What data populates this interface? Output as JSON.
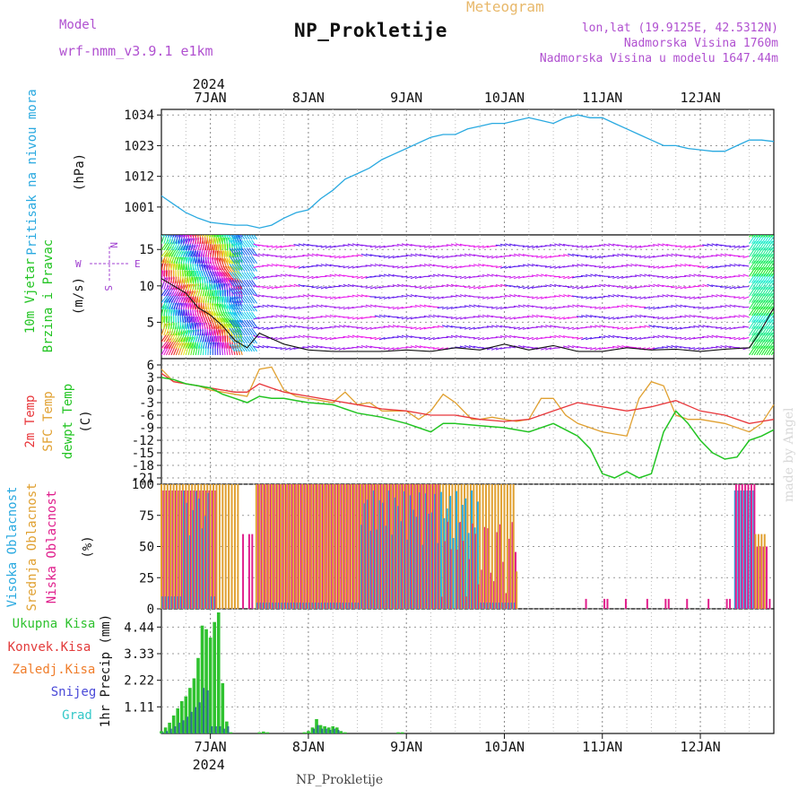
{
  "header": {
    "title": "NP_Prokletije",
    "meteogram": "Meteogram",
    "model_label": "Model",
    "model_name": "wrf-nmm_v3.9.1 e1km",
    "lonlat": "lon,lat (19.9125E, 42.5312N)",
    "altitude": "Nadmorska Visina 1760m",
    "model_altitude": "Nadmorska Visina u modelu 1647.44m"
  },
  "footer": {
    "station": "NP_Prokletije",
    "credit": "made by Angel"
  },
  "colors": {
    "pressure": "#29a9e0",
    "temp2m": "#e8363a",
    "sfc": "#e0a030",
    "dew": "#22c422",
    "high": "#29a9e0",
    "mid": "#e0a030",
    "low": "#e01e8c",
    "total": "#2fc22f",
    "conv": "#e23a3a",
    "freeze": "#f07d2a",
    "snow": "#4a4ad8",
    "hail": "#35c8c8"
  },
  "chart_data": {
    "type": "meteogram",
    "x_axis": {
      "year_label": "2024",
      "day_labels": [
        "7JAN",
        "8JAN",
        "9JAN",
        "10JAN",
        "11JAN",
        "12JAN"
      ],
      "day_hours": [
        24,
        48,
        72,
        96,
        120,
        144
      ],
      "hours_range": [
        12,
        162
      ]
    },
    "panels": {
      "pressure": {
        "ylabel": "Pritisak na nivou mora",
        "unit": "(hPa)",
        "ticks": [
          1001,
          1012,
          1023,
          1034
        ],
        "ylim": [
          991,
          1036
        ],
        "series": {
          "hours": [
            12,
            15,
            18,
            21,
            24,
            27,
            30,
            33,
            36,
            39,
            42,
            45,
            48,
            51,
            54,
            57,
            60,
            63,
            66,
            69,
            72,
            75,
            78,
            81,
            84,
            87,
            90,
            93,
            96,
            99,
            102,
            105,
            108,
            111,
            114,
            117,
            120,
            123,
            126,
            129,
            132,
            135,
            138,
            141,
            144,
            147,
            150,
            153,
            156,
            159,
            162
          ],
          "values": [
            1005,
            1002,
            999,
            997,
            995.5,
            995,
            994.5,
            994.5,
            993.5,
            994.5,
            997,
            999,
            1000,
            1004,
            1007,
            1011,
            1013,
            1015,
            1018,
            1020,
            1022,
            1024,
            1026,
            1027,
            1027,
            1029,
            1030,
            1031,
            1031,
            1032,
            1033,
            1032,
            1031,
            1033,
            1034,
            1033,
            1033,
            1031,
            1029,
            1027,
            1025,
            1023,
            1023,
            1022,
            1021.5,
            1021,
            1021,
            1023,
            1025,
            1025,
            1024.5
          ]
        }
      },
      "wind": {
        "ylabel": "10m Vjetar",
        "ylabel2": "Brzina i Pravac",
        "unit": "(m/s)",
        "legend_n": "N",
        "legend_s": "S",
        "legend_w": "W",
        "legend_e": "E",
        "ticks": [
          5,
          10,
          15
        ],
        "ylim": [
          0,
          17
        ],
        "series": {
          "hours": [
            12,
            15,
            18,
            21,
            24,
            27,
            30,
            33,
            36,
            42,
            48,
            54,
            60,
            66,
            72,
            78,
            84,
            90,
            96,
            102,
            108,
            114,
            120,
            126,
            132,
            138,
            144,
            150,
            156,
            159,
            162
          ],
          "values": [
            11,
            10,
            9,
            7,
            6,
            4.5,
            2.5,
            1.5,
            3.5,
            2,
            1.2,
            1,
            1,
            1,
            1.2,
            1,
            1.5,
            1.2,
            2,
            1.2,
            1.8,
            1,
            1,
            1.5,
            1.2,
            1.3,
            1,
            1.3,
            1.5,
            4,
            7
          ]
        }
      },
      "temperature": {
        "labels": [
          "2m Temp",
          "SFC Temp",
          "dewpt Temp"
        ],
        "unit": "(C)",
        "ticks": [
          6,
          3,
          0,
          -3,
          -6,
          -9,
          -12,
          -15,
          -18,
          -21
        ],
        "ylim": [
          -22.5,
          7.5
        ],
        "temp2m": {
          "hours": [
            12,
            15,
            18,
            21,
            24,
            27,
            30,
            33,
            36,
            39,
            42,
            45,
            48,
            54,
            60,
            66,
            72,
            78,
            84,
            90,
            96,
            102,
            108,
            114,
            120,
            126,
            132,
            138,
            144,
            150,
            156,
            159,
            162
          ],
          "values": [
            4,
            2,
            1.5,
            1,
            0.5,
            0,
            -0.5,
            -0.5,
            1.5,
            0.5,
            -0.5,
            -1,
            -1.5,
            -2.5,
            -3.5,
            -4.5,
            -5,
            -6,
            -6,
            -7,
            -7.5,
            -7,
            -5,
            -3,
            -4,
            -5,
            -4,
            -2.5,
            -5,
            -6,
            -8,
            -7.5,
            -7
          ]
        },
        "sfc": {
          "hours": [
            12,
            15,
            18,
            21,
            24,
            27,
            30,
            33,
            36,
            39,
            42,
            45,
            48,
            54,
            57,
            60,
            63,
            66,
            72,
            75,
            78,
            81,
            84,
            88,
            90,
            93,
            96,
            99,
            102,
            105,
            108,
            111,
            114,
            117,
            120,
            123,
            126,
            129,
            132,
            135,
            138,
            141,
            144,
            150,
            156,
            159,
            162
          ],
          "values": [
            5,
            2,
            1.5,
            1,
            0,
            -0.5,
            -1,
            -1.5,
            5,
            5.5,
            0,
            -1.5,
            -2,
            -3,
            -0.5,
            -3.5,
            -3,
            -5,
            -5,
            -7,
            -5,
            -1,
            -3,
            -7,
            -7,
            -6.5,
            -7,
            -7.5,
            -7,
            -2,
            -2,
            -6,
            -8,
            -9,
            -10,
            -10.5,
            -11,
            -2,
            2,
            1,
            -6,
            -7,
            -7,
            -8,
            -10,
            -8,
            -3.5
          ]
        },
        "dew": {
          "hours": [
            12,
            15,
            18,
            21,
            24,
            27,
            30,
            33,
            36,
            39,
            42,
            45,
            48,
            54,
            60,
            66,
            72,
            75,
            78,
            81,
            84,
            90,
            96,
            102,
            108,
            114,
            117,
            120,
            123,
            126,
            129,
            132,
            135,
            138,
            141,
            144,
            147,
            150,
            153,
            156,
            159,
            162
          ],
          "values": [
            3,
            2.5,
            1.5,
            1,
            0.5,
            -1,
            -2,
            -3,
            -1.5,
            -2,
            -2,
            -2.5,
            -3,
            -3.5,
            -5.5,
            -6.5,
            -8,
            -9,
            -10,
            -8,
            -8,
            -8.5,
            -9,
            -10,
            -8,
            -11,
            -14,
            -20,
            -21,
            -19.5,
            -21,
            -20,
            -10,
            -5,
            -8,
            -12,
            -15,
            -16.5,
            -16,
            -12,
            -11,
            -9.5
          ]
        }
      },
      "clouds": {
        "labels": [
          "Visoka Oblacnost",
          "Srednja Oblacnost",
          "Niska Oblacnost"
        ],
        "unit": "(%)",
        "ticks": [
          0,
          25,
          50,
          75,
          100
        ],
        "ylim": [
          0,
          100
        ]
      },
      "precip": {
        "labels": [
          "Ukupna Kisa",
          "Konvek.Kisa",
          "Zaledj.Kisa",
          "Snijeg",
          "Grad"
        ],
        "ylabel": "1hr Precip (mm)",
        "ticks": [
          "1.11",
          "2.22",
          "3.33",
          "4.44"
        ],
        "tick_values": [
          1.11,
          2.22,
          3.33,
          4.44
        ],
        "ylim": [
          0,
          5.2
        ],
        "total": {
          "hours": [
            12,
            13,
            14,
            15,
            16,
            17,
            18,
            19,
            20,
            21,
            22,
            23,
            24,
            25,
            26,
            27,
            28,
            29,
            36,
            37,
            38,
            47,
            48,
            49,
            50,
            51,
            52,
            53,
            54,
            55,
            56,
            57,
            70,
            71
          ],
          "values": [
            0.1,
            0.25,
            0.45,
            0.75,
            1.05,
            1.35,
            1.55,
            1.9,
            2.3,
            3.15,
            4.5,
            4.35,
            4.0,
            4.65,
            5.05,
            2.1,
            0.5,
            0.05,
            0.05,
            0.08,
            0.05,
            0.05,
            0.1,
            0.25,
            0.6,
            0.35,
            0.3,
            0.25,
            0.3,
            0.25,
            0.1,
            0.05,
            0.05,
            0.05
          ]
        },
        "snow": {
          "hours": [
            12,
            13,
            14,
            15,
            16,
            17,
            18,
            19,
            20,
            21,
            22,
            23,
            24,
            25,
            26,
            27,
            28,
            49,
            50,
            51,
            52,
            53,
            54,
            55
          ],
          "values": [
            0.05,
            0.1,
            0.2,
            0.3,
            0.45,
            0.55,
            0.7,
            0.9,
            1.1,
            1.3,
            1.9,
            1.8,
            0.3,
            0.3,
            0.3,
            0.2,
            0.3,
            0.2,
            0.35,
            0.2,
            0.2,
            0.15,
            0.2,
            0.15
          ]
        }
      }
    }
  }
}
